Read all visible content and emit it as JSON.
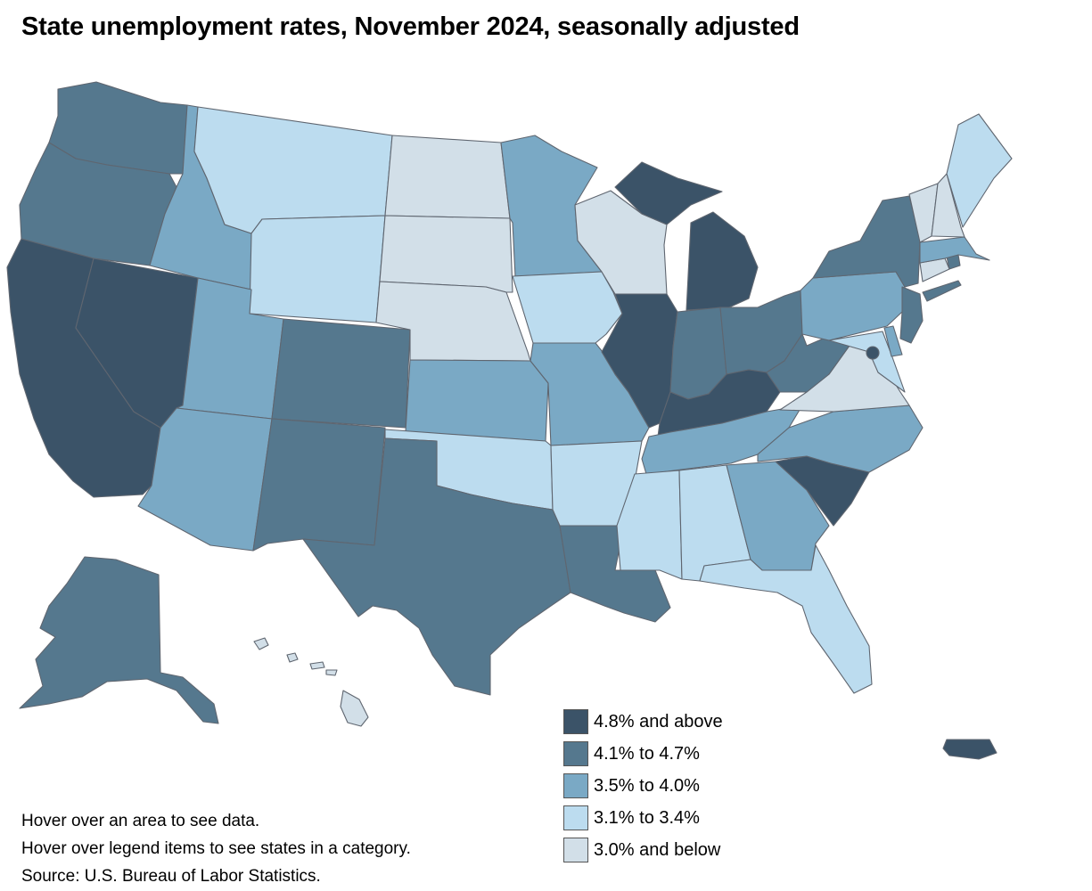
{
  "title": "State unemployment rates, November 2024, seasonally adjusted",
  "colors": {
    "c5": "#3b5368",
    "c4": "#55788e",
    "c3": "#7aa9c5",
    "c2": "#bcdcef",
    "c1": "#d2dfe8"
  },
  "legend": [
    {
      "label": "4.8% and above",
      "color_key": "c5"
    },
    {
      "label": "4.1% to 4.7%",
      "color_key": "c4"
    },
    {
      "label": "3.5% to 4.0%",
      "color_key": "c3"
    },
    {
      "label": "3.1% to 3.4%",
      "color_key": "c2"
    },
    {
      "label": "3.0% and below",
      "color_key": "c1"
    }
  ],
  "notes": {
    "hover_area": "Hover over an area to see data.",
    "hover_legend": "Hover over legend items to see states in a category.",
    "source": "Source: U.S. Bureau of Labor Statistics."
  },
  "states": {
    "WA": "c4",
    "OR": "c4",
    "CA": "c5",
    "NV": "c5",
    "ID": "c3",
    "MT": "c2",
    "WY": "c2",
    "UT": "c3",
    "AZ": "c3",
    "CO": "c4",
    "NM": "c4",
    "ND": "c1",
    "SD": "c1",
    "NE": "c1",
    "KS": "c3",
    "OK": "c2",
    "TX": "c4",
    "MN": "c3",
    "IA": "c2",
    "MO": "c3",
    "AR": "c2",
    "LA": "c4",
    "WI": "c1",
    "IL": "c5",
    "MI": "c5",
    "IN": "c4",
    "OH": "c4",
    "KY": "c5",
    "TN": "c3",
    "MS": "c2",
    "AL": "c2",
    "GA": "c3",
    "FL": "c2",
    "SC": "c5",
    "NC": "c3",
    "VA": "c1",
    "WV": "c4",
    "MD": "c2",
    "DE": "c3",
    "PA": "c3",
    "NJ": "c4",
    "NY": "c4",
    "CT": "c1",
    "RI": "c4",
    "MA": "c3",
    "VT": "c1",
    "NH": "c1",
    "ME": "c2",
    "AK": "c4",
    "HI": "c1",
    "DC": "c5",
    "PR": "c5"
  }
}
